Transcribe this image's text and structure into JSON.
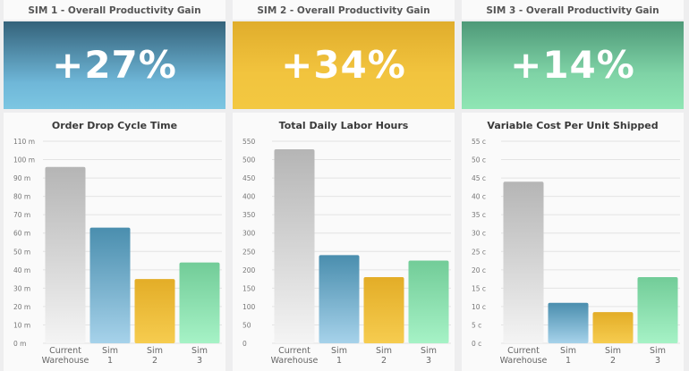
{
  "dashboard": [
    {
      "sim_title": "SIM 1 - Overall Productivity Gain",
      "gain": "+27%",
      "chart_title": "Order Drop Cycle Time"
    },
    {
      "sim_title": "SIM 2 - Overall Productivity Gain",
      "gain": "+34%",
      "chart_title": "Total Daily Labor Hours"
    },
    {
      "sim_title": "SIM 3 - Overall Productivity Gain",
      "gain": "+14%",
      "chart_title": "Variable Cost Per Unit Shipped"
    }
  ],
  "colors": {
    "current": "#b9b9b9",
    "sim1": "#4f96b6",
    "sim2": "#e8b32e",
    "sim3": "#7fd9a4"
  },
  "chart_data": [
    {
      "type": "bar",
      "title": "Order Drop Cycle Time",
      "categories": [
        "Current Warehouse",
        "Sim 1",
        "Sim 2",
        "Sim 3"
      ],
      "values": [
        96,
        63,
        35,
        44
      ],
      "ylim": [
        0,
        110
      ],
      "ytick_labels": [
        "0 m",
        "10 m",
        "20 m",
        "30 m",
        "40 m",
        "50 m",
        "60 m",
        "70 m",
        "80 m",
        "90 m",
        "100 m",
        "110 m"
      ],
      "grid": true
    },
    {
      "type": "bar",
      "title": "Total Daily Labor Hours",
      "categories": [
        "Current Warehouse",
        "Sim 1",
        "Sim 2",
        "Sim 3"
      ],
      "values": [
        528,
        240,
        180,
        225
      ],
      "ylim": [
        0,
        550
      ],
      "ytick_labels": [
        "0",
        "50",
        "100",
        "150",
        "200",
        "250",
        "300",
        "350",
        "400",
        "450",
        "500",
        "550"
      ],
      "grid": true
    },
    {
      "type": "bar",
      "title": "Variable Cost Per Unit Shipped",
      "categories": [
        "Current Warehouse",
        "Sim 1",
        "Sim 2",
        "Sim 3"
      ],
      "values": [
        44,
        11,
        8.5,
        18
      ],
      "ylim": [
        0,
        55
      ],
      "ytick_labels": [
        "0 c",
        "5 c",
        "10 c",
        "15 c",
        "20 c",
        "25 c",
        "30 c",
        "35 c",
        "40 c",
        "45 c",
        "50 c",
        "55 c"
      ],
      "grid": true
    }
  ]
}
